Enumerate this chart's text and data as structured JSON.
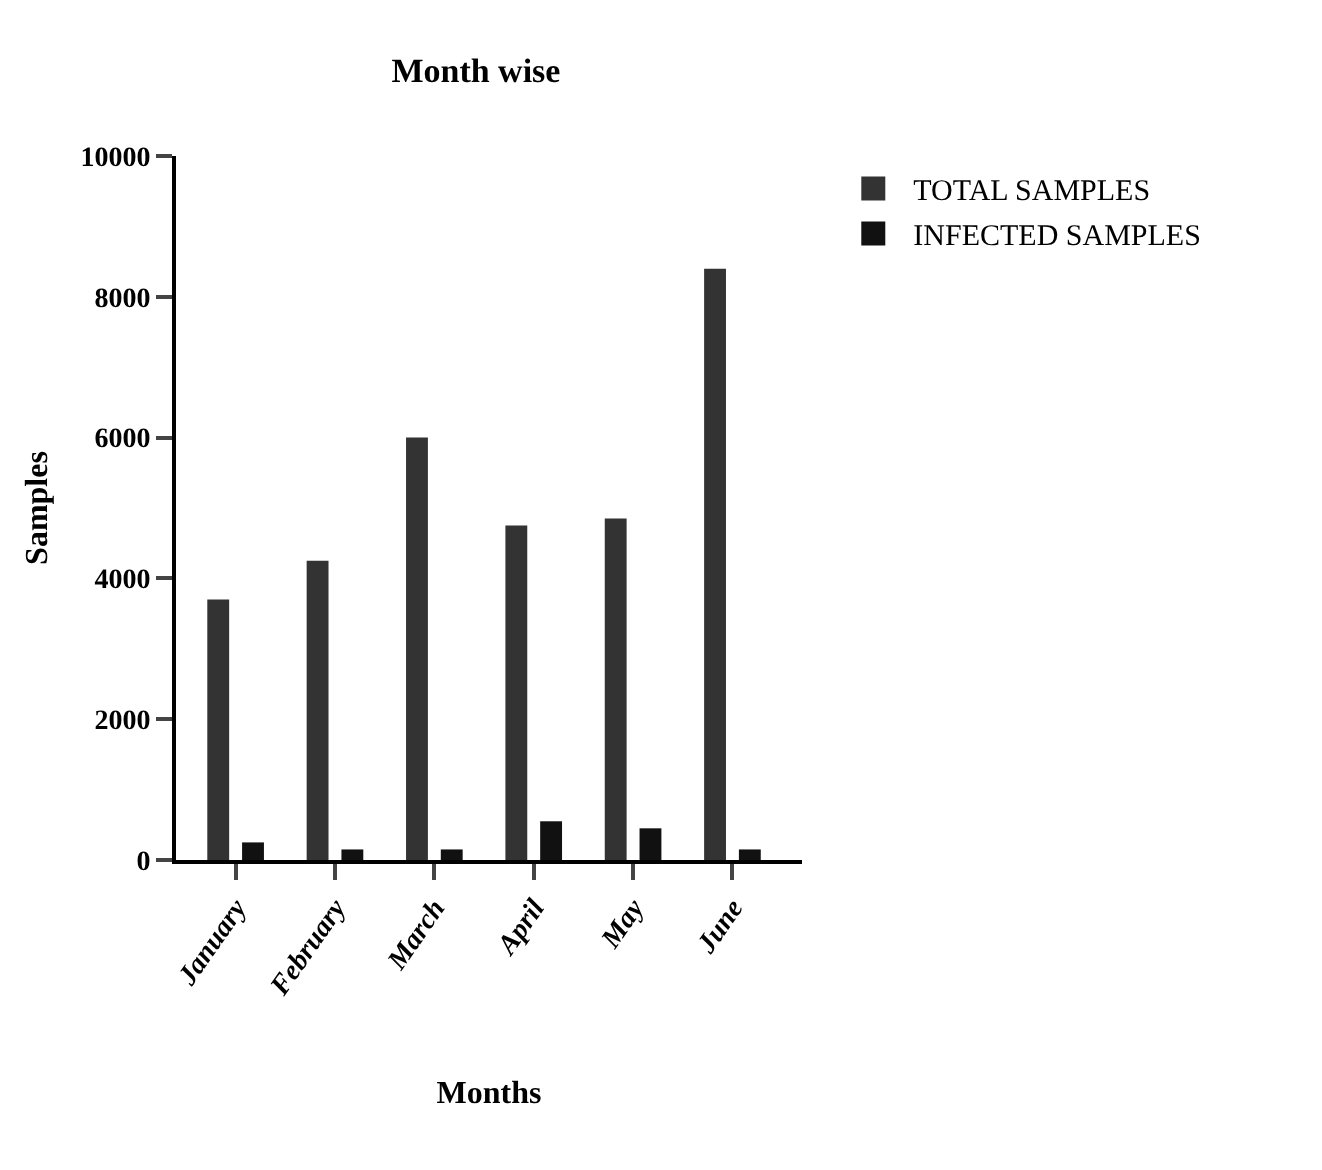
{
  "chart_data": {
    "type": "bar",
    "title": "Month wise",
    "xlabel": "Months",
    "ylabel": "Samples",
    "categories": [
      "January",
      "February",
      "March",
      "April",
      "May",
      "June"
    ],
    "series": [
      {
        "name": "TOTAL SAMPLES",
        "color": "#333333",
        "values": [
          3700,
          4250,
          6000,
          4750,
          4850,
          8400
        ]
      },
      {
        "name": "INFECTED SAMPLES",
        "color": "#111111",
        "values": [
          250,
          150,
          150,
          550,
          450,
          150
        ]
      }
    ],
    "ylim": [
      0,
      10000
    ],
    "yticks": [
      0,
      2000,
      4000,
      6000,
      8000,
      10000
    ],
    "grid": false,
    "legend": "top right"
  }
}
